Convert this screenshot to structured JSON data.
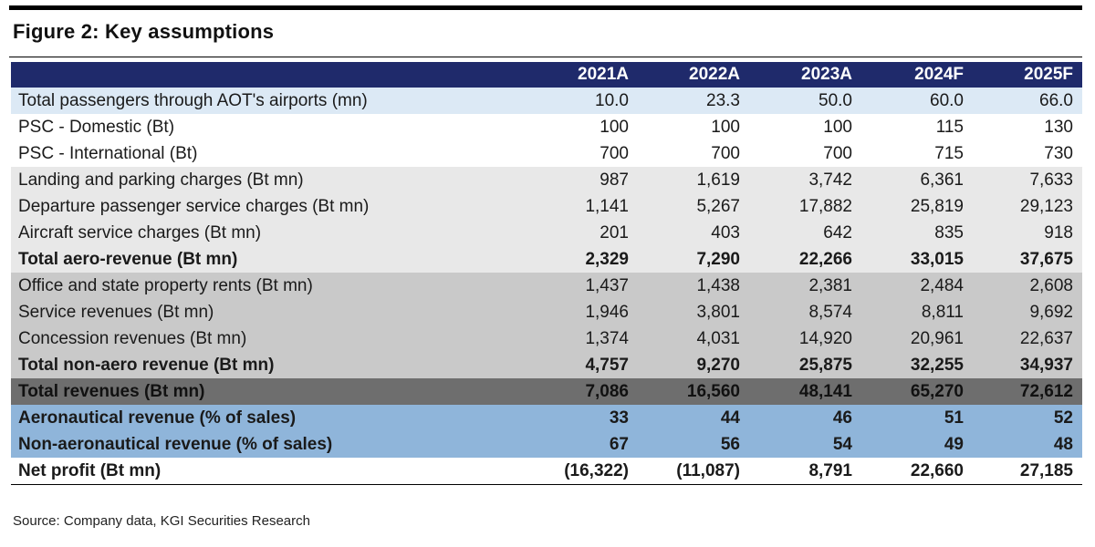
{
  "figure": {
    "title": "Figure 2: Key assumptions",
    "source": "Source: Company data, KGI Securities Research"
  },
  "table": {
    "columns": [
      "",
      "2021A",
      "2022A",
      "2023A",
      "2024F",
      "2025F"
    ],
    "rows": [
      {
        "label": "Total passengers through AOT's airports (mn)",
        "values": [
          "10.0",
          "23.3",
          "50.0",
          "60.0",
          "66.0"
        ]
      },
      {
        "label": "PSC - Domestic (Bt)",
        "values": [
          "100",
          "100",
          "100",
          "115",
          "130"
        ]
      },
      {
        "label": "PSC - International (Bt)",
        "values": [
          "700",
          "700",
          "700",
          "715",
          "730"
        ]
      },
      {
        "label": "Landing and parking charges (Bt mn)",
        "values": [
          "987",
          "1,619",
          "3,742",
          "6,361",
          "7,633"
        ]
      },
      {
        "label": "Departure passenger service charges (Bt mn)",
        "values": [
          "1,141",
          "5,267",
          "17,882",
          "25,819",
          "29,123"
        ]
      },
      {
        "label": "Aircraft service charges (Bt mn)",
        "values": [
          "201",
          "403",
          "642",
          "835",
          "918"
        ]
      },
      {
        "label": "Total aero-revenue (Bt mn)",
        "values": [
          "2,329",
          "7,290",
          "22,266",
          "33,015",
          "37,675"
        ]
      },
      {
        "label": "Office and state property rents (Bt mn)",
        "values": [
          "1,437",
          "1,438",
          "2,381",
          "2,484",
          "2,608"
        ]
      },
      {
        "label": "Service revenues (Bt mn)",
        "values": [
          "1,946",
          "3,801",
          "8,574",
          "8,811",
          "9,692"
        ]
      },
      {
        "label": "Concession revenues (Bt mn)",
        "values": [
          "1,374",
          "4,031",
          "14,920",
          "20,961",
          "22,637"
        ]
      },
      {
        "label": "Total non-aero revenue (Bt mn)",
        "values": [
          "4,757",
          "9,270",
          "25,875",
          "32,255",
          "34,937"
        ]
      },
      {
        "label": "Total revenues (Bt mn)",
        "values": [
          "7,086",
          "16,560",
          "48,141",
          "65,270",
          "72,612"
        ]
      },
      {
        "label": "Aeronautical revenue (% of sales)",
        "values": [
          "33",
          "44",
          "46",
          "51",
          "52"
        ]
      },
      {
        "label": "Non-aeronautical revenue (% of sales)",
        "values": [
          "67",
          "56",
          "54",
          "49",
          "48"
        ]
      },
      {
        "label": "Net profit (Bt mn)",
        "values": [
          "(16,322)",
          "(11,087)",
          "8,791",
          "22,660",
          "27,185"
        ]
      }
    ]
  },
  "colors": {
    "header_bg": "#1f2a6b",
    "light_blue": "#dce9f5",
    "grey_light": "#e8e8e8",
    "grey_mid": "#c9c9c9",
    "grey_dark": "#6e6e6e",
    "blue_mid": "#8fb5da"
  }
}
